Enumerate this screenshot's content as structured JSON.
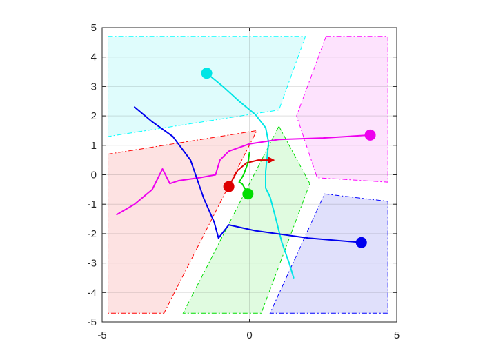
{
  "chart_data": {
    "type": "line",
    "xlim": [
      -5,
      5
    ],
    "ylim": [
      -5,
      5
    ],
    "x_ticks": [
      -5,
      0,
      5
    ],
    "y_ticks": [
      5,
      4,
      3,
      2,
      1,
      0,
      -1,
      -2,
      -3,
      -4,
      -5
    ],
    "x_tick_labels": [
      "-5",
      "0",
      "5"
    ],
    "y_tick_labels": [
      "5",
      "4",
      "3",
      "2",
      "1",
      "0",
      "-1",
      "-2",
      "-3",
      "-4",
      "-5"
    ],
    "grid": true,
    "regions": [
      {
        "color": "#00ffff",
        "fill": "#dffcfc",
        "points": [
          [
            -4.8,
            4.7
          ],
          [
            1.9,
            4.7
          ],
          [
            1.0,
            2.2
          ],
          [
            -4.8,
            1.3
          ]
        ]
      },
      {
        "color": "#ff00ff",
        "fill": "#fde3fd",
        "points": [
          [
            2.6,
            4.7
          ],
          [
            4.7,
            4.7
          ],
          [
            4.7,
            -0.25
          ],
          [
            2.3,
            -0.1
          ],
          [
            1.6,
            2.0
          ]
        ]
      },
      {
        "color": "#ff0000",
        "fill": "#fde2e2",
        "points": [
          [
            -4.8,
            0.7
          ],
          [
            0.25,
            1.5
          ],
          [
            -2.9,
            -4.7
          ],
          [
            -4.8,
            -4.7
          ]
        ]
      },
      {
        "color": "#00dd00",
        "fill": "#e0fbe0",
        "points": [
          [
            1.0,
            1.65
          ],
          [
            2.05,
            -0.3
          ],
          [
            0.4,
            -4.7
          ],
          [
            -2.25,
            -4.7
          ]
        ]
      },
      {
        "color": "#0000ff",
        "fill": "#e0e0fb",
        "points": [
          [
            2.55,
            -0.65
          ],
          [
            4.7,
            -0.9
          ],
          [
            4.7,
            -4.7
          ],
          [
            0.7,
            -4.7
          ]
        ]
      }
    ],
    "series": [
      {
        "color": "#00e5e5",
        "start": [
          -1.45,
          3.45
        ],
        "points": [
          [
            -1.45,
            3.45
          ],
          [
            -0.9,
            3.0
          ],
          [
            -0.35,
            2.5
          ],
          [
            0.2,
            2.05
          ],
          [
            0.55,
            1.6
          ],
          [
            0.65,
            1.1
          ],
          [
            0.6,
            0.6
          ],
          [
            0.55,
            0.1
          ],
          [
            0.55,
            -0.45
          ],
          [
            0.7,
            -0.75
          ],
          [
            0.9,
            -1.5
          ],
          [
            1.1,
            -2.3
          ],
          [
            1.35,
            -3.0
          ],
          [
            1.5,
            -3.5
          ]
        ]
      },
      {
        "color": "#ee00ee",
        "start": [
          4.1,
          1.35
        ],
        "points": [
          [
            4.1,
            1.35
          ],
          [
            2.5,
            1.25
          ],
          [
            1.0,
            1.2
          ],
          [
            0.0,
            1.05
          ],
          [
            -0.7,
            0.8
          ],
          [
            -1.0,
            0.5
          ],
          [
            -1.15,
            0.0
          ],
          [
            -1.7,
            -0.1
          ],
          [
            -2.4,
            -0.2
          ],
          [
            -2.7,
            -0.3
          ],
          [
            -2.95,
            0.2
          ],
          [
            -3.3,
            -0.5
          ],
          [
            -3.9,
            -1.0
          ],
          [
            -4.5,
            -1.35
          ]
        ]
      },
      {
        "color": "#0000ee",
        "start": [
          3.8,
          -2.3
        ],
        "points": [
          [
            3.8,
            -2.3
          ],
          [
            2.0,
            -2.15
          ],
          [
            0.2,
            -1.9
          ],
          [
            -0.7,
            -1.7
          ],
          [
            -1.05,
            -2.15
          ],
          [
            -1.2,
            -1.6
          ],
          [
            -1.55,
            -0.8
          ],
          [
            -2.0,
            0.5
          ],
          [
            -2.6,
            1.3
          ],
          [
            -3.3,
            1.8
          ],
          [
            -3.9,
            2.3
          ]
        ]
      },
      {
        "color": "#dd0000",
        "start": [
          -0.7,
          -0.4
        ],
        "points": [
          [
            -0.7,
            -0.4
          ],
          [
            -0.4,
            0.15
          ],
          [
            -0.1,
            0.4
          ],
          [
            0.3,
            0.5
          ],
          [
            0.7,
            0.5
          ]
        ]
      },
      {
        "color": "#00dd00",
        "start": [
          -0.05,
          -0.65
        ],
        "points": [
          [
            -0.05,
            -0.65
          ],
          [
            -0.25,
            -0.3
          ],
          [
            -0.35,
            -0.25
          ],
          [
            -0.2,
            0.0
          ],
          [
            -0.05,
            0.4
          ],
          [
            0.0,
            0.75
          ]
        ]
      }
    ]
  }
}
